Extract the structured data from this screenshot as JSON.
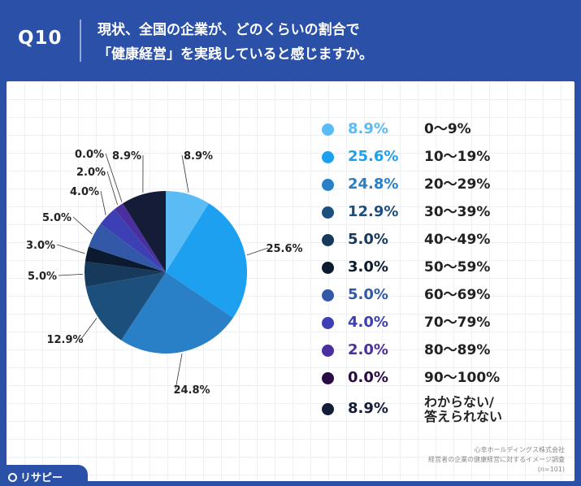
{
  "header": {
    "badge": "Q10",
    "question_line1": "現状、全国の企業が、どのくらいの割合で",
    "question_line2": "「健康経営」を実践していると感じますか。"
  },
  "chart_data": {
    "type": "pie",
    "title": "",
    "categories": [
      "0〜9%",
      "10〜19%",
      "20〜29%",
      "30〜39%",
      "40〜49%",
      "50〜59%",
      "60〜69%",
      "70〜79%",
      "80〜89%",
      "90〜100%",
      "わからない/答えられない"
    ],
    "values": [
      8.9,
      25.6,
      24.8,
      12.9,
      5.0,
      3.0,
      5.0,
      4.0,
      2.0,
      0.0,
      8.9
    ],
    "value_labels": [
      "8.9%",
      "25.6%",
      "24.8%",
      "12.9%",
      "5.0%",
      "3.0%",
      "5.0%",
      "4.0%",
      "2.0%",
      "0.0%",
      "8.9%"
    ],
    "colors": [
      "#5bbcf5",
      "#1ea0f0",
      "#2980c6",
      "#1c4f7c",
      "#173a5c",
      "#0b1a2e",
      "#3458a8",
      "#3d40b5",
      "#4b2f9e",
      "#2a0a45",
      "#141c38"
    ],
    "legend_position": "right"
  },
  "legend": [
    {
      "pct": "8.9%",
      "label": "0〜9%",
      "color": "#5bbcf5"
    },
    {
      "pct": "25.6%",
      "label": "10〜19%",
      "color": "#1ea0f0"
    },
    {
      "pct": "24.8%",
      "label": "20〜29%",
      "color": "#2980c6"
    },
    {
      "pct": "12.9%",
      "label": "30〜39%",
      "color": "#1c4f7c"
    },
    {
      "pct": "5.0%",
      "label": "40〜49%",
      "color": "#173a5c"
    },
    {
      "pct": "3.0%",
      "label": "50〜59%",
      "color": "#0b1a2e"
    },
    {
      "pct": "5.0%",
      "label": "60〜69%",
      "color": "#3458a8"
    },
    {
      "pct": "4.0%",
      "label": "70〜79%",
      "color": "#3d40b5"
    },
    {
      "pct": "2.0%",
      "label": "80〜89%",
      "color": "#4b2f9e"
    },
    {
      "pct": "0.0%",
      "label": "90〜100%",
      "color": "#2a0a45"
    },
    {
      "pct": "8.9%",
      "label": "わからない/",
      "label2": "答えられない",
      "color": "#141c38"
    }
  ],
  "source": {
    "line1": "心幸ホールディングス株式会社",
    "line2": "経営者の企業の健康経営に対するイメージ調査",
    "line3": "(n=101)"
  },
  "brand": {
    "name": "リサピー"
  }
}
